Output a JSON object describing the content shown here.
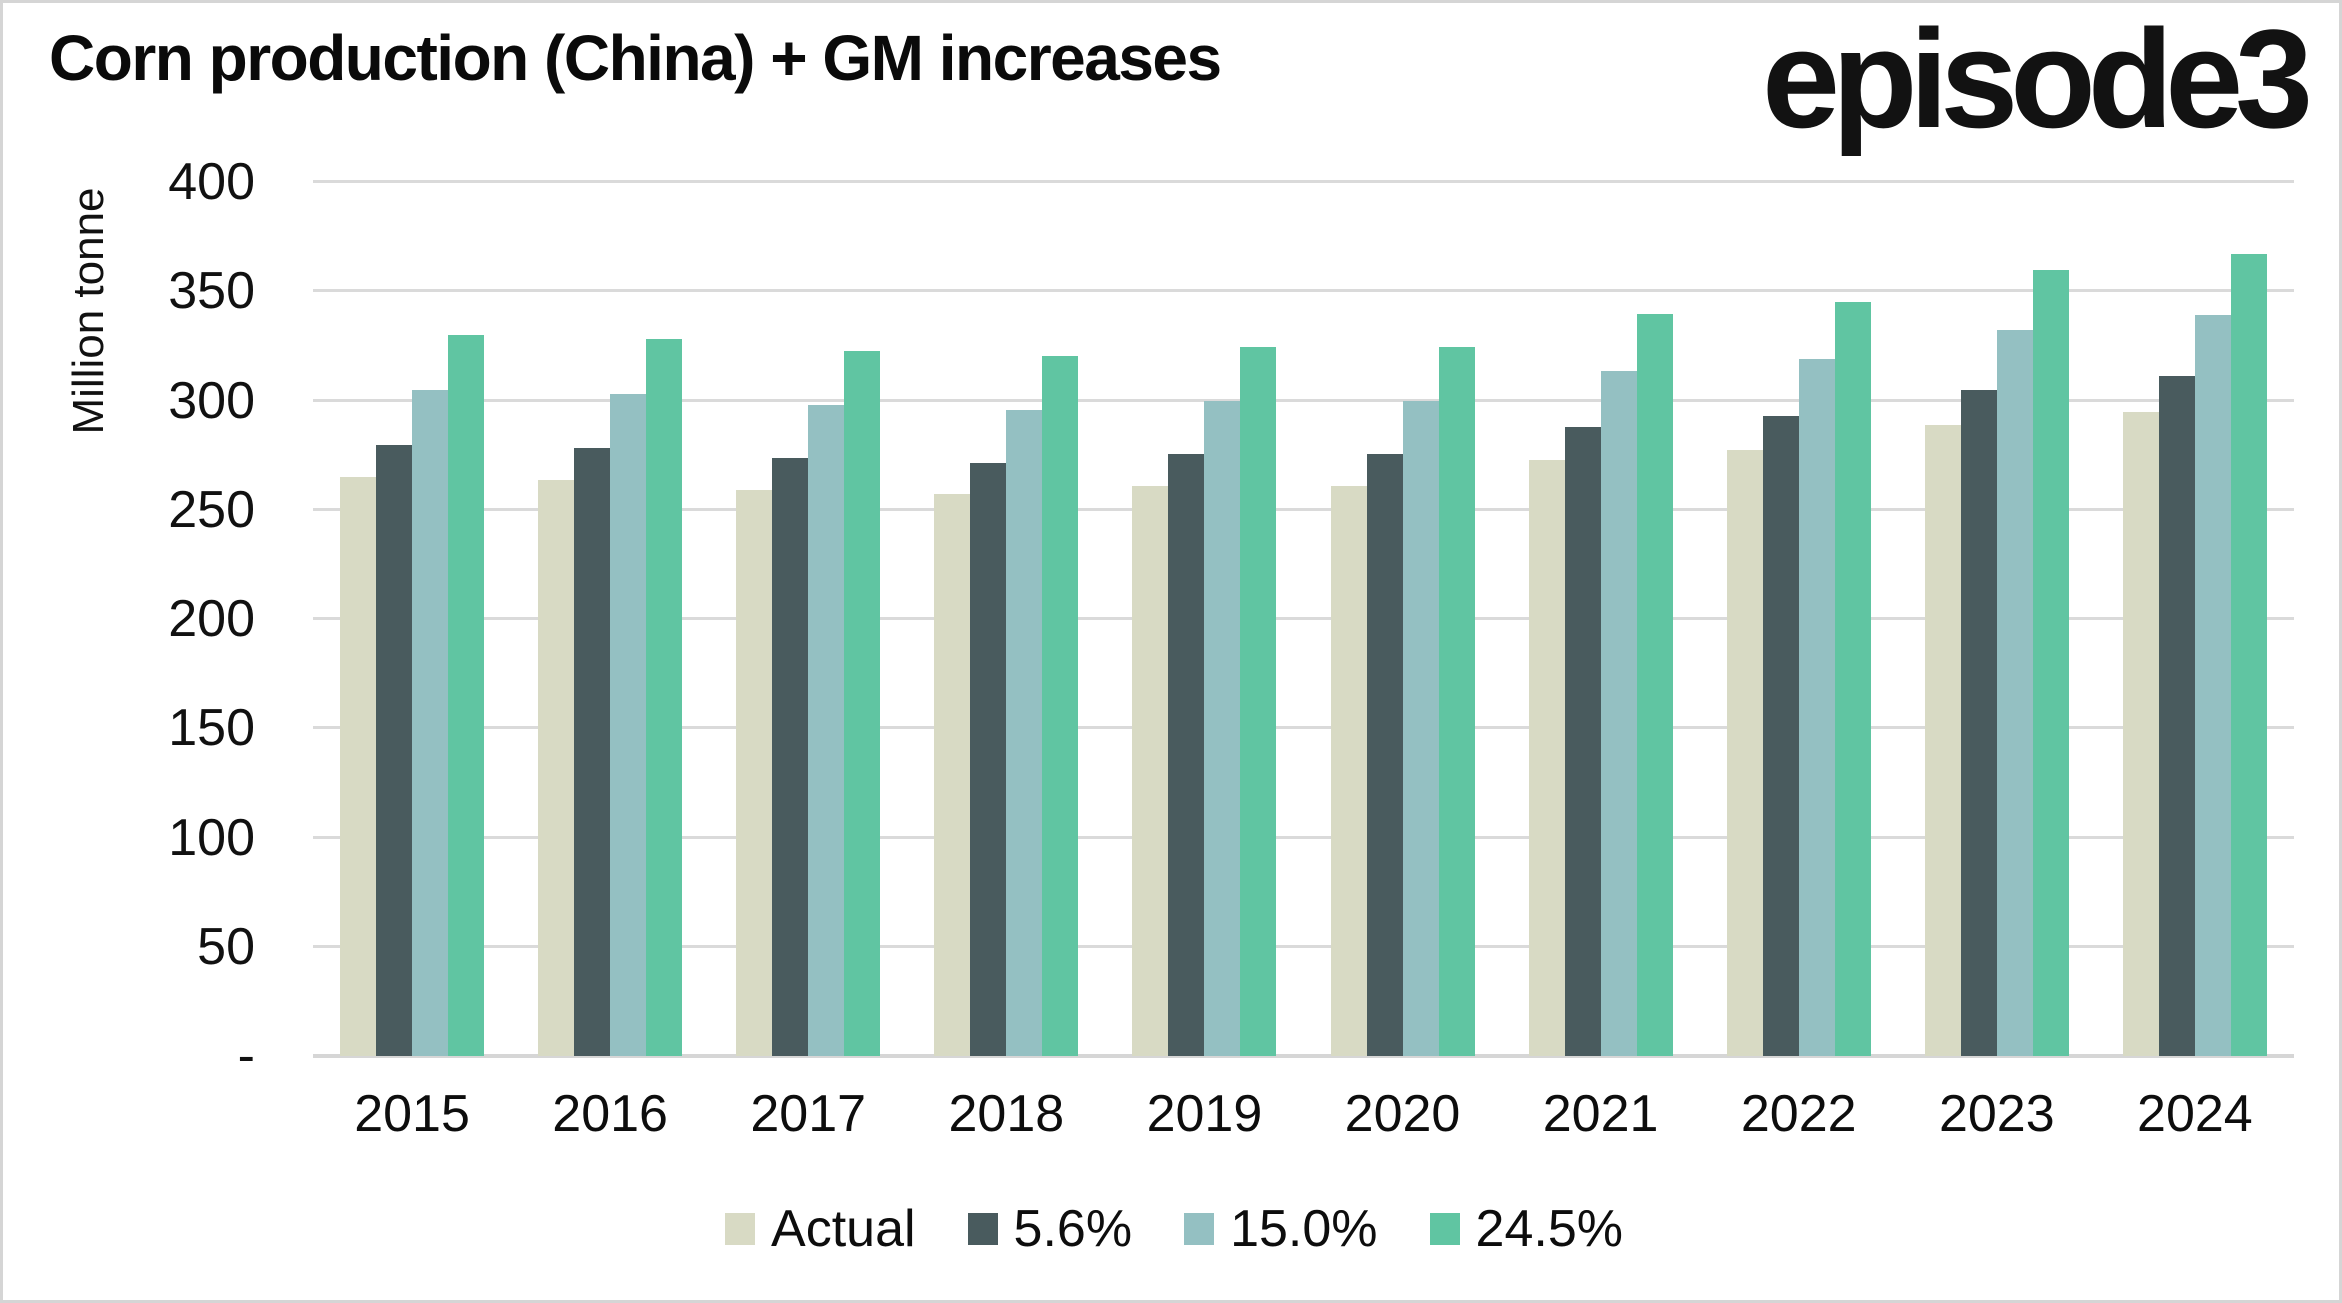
{
  "header": {
    "title": "Corn production (China) + GM increases",
    "logo_text": "episode3"
  },
  "chart_data": {
    "type": "bar",
    "title": "Corn production (China) + GM increases",
    "xlabel": "",
    "ylabel": "Million tonne",
    "ylim": [
      0,
      400
    ],
    "ytick_step": 50,
    "grid": true,
    "gridline_color": "#dadada",
    "background": "#ffffff",
    "legend_position": "bottom",
    "yticks": [
      {
        "value": 400,
        "label": "400"
      },
      {
        "value": 350,
        "label": "350"
      },
      {
        "value": 300,
        "label": "300"
      },
      {
        "value": 250,
        "label": "250"
      },
      {
        "value": 200,
        "label": "200"
      },
      {
        "value": 150,
        "label": "150"
      },
      {
        "value": 100,
        "label": "100"
      },
      {
        "value": 50,
        "label": "50"
      },
      {
        "value": 0,
        "label": "-"
      }
    ],
    "categories": [
      "2015",
      "2016",
      "2017",
      "2018",
      "2019",
      "2020",
      "2021",
      "2022",
      "2023",
      "2024"
    ],
    "series": [
      {
        "name": "Actual",
        "color": "#d8dac4",
        "values": [
          265.0,
          263.6,
          259.1,
          257.2,
          260.8,
          260.7,
          272.6,
          277.2,
          288.8,
          294.9
        ]
      },
      {
        "name": "5.6%",
        "color": "#495b5e",
        "values": [
          279.8,
          278.4,
          273.6,
          271.6,
          275.4,
          275.3,
          287.9,
          292.7,
          305.0,
          311.4
        ]
      },
      {
        "name": "15.0%",
        "color": "#94c0c2",
        "values": [
          304.8,
          303.1,
          298.0,
          295.8,
          299.9,
          299.8,
          313.5,
          318.8,
          332.1,
          339.1
        ]
      },
      {
        "name": "24.5%",
        "color": "#60c5a2",
        "values": [
          329.9,
          328.2,
          322.6,
          320.2,
          324.7,
          324.6,
          339.4,
          345.1,
          359.6,
          367.2
        ]
      }
    ]
  }
}
